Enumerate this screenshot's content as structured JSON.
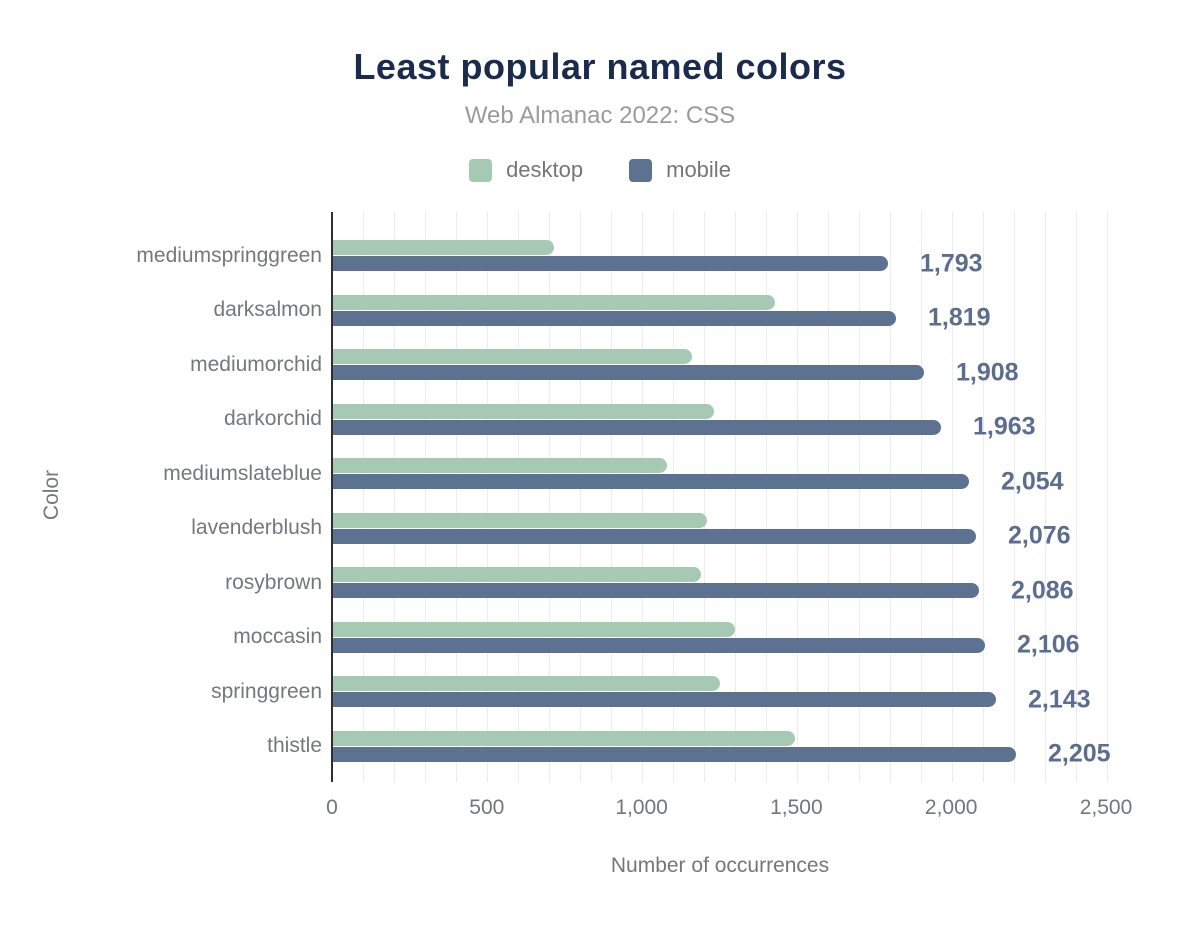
{
  "header": {
    "title": "Least popular named colors",
    "subtitle": "Web Almanac 2022: CSS"
  },
  "legend": [
    {
      "label": "desktop",
      "color": "#a6c9b4"
    },
    {
      "label": "mobile",
      "color": "#5d7191"
    }
  ],
  "chart_data": {
    "type": "bar",
    "orientation": "horizontal",
    "title": "Least popular named colors",
    "subtitle": "Web Almanac 2022: CSS",
    "categories": [
      "mediumspringgreen",
      "darksalmon",
      "mediumorchid",
      "darkorchid",
      "mediumslateblue",
      "lavenderblush",
      "rosybrown",
      "moccasin",
      "springgreen",
      "thistle"
    ],
    "series": [
      {
        "name": "desktop",
        "color": "#a6c9b4",
        "values": [
          715,
          1429,
          1160,
          1230,
          1078,
          1208,
          1188,
          1299,
          1249,
          1491
        ]
      },
      {
        "name": "mobile",
        "color": "#5d7191",
        "values": [
          1793,
          1819,
          1908,
          1963,
          2054,
          2076,
          2086,
          2106,
          2143,
          2205
        ],
        "value_labels": [
          "1,793",
          "1,819",
          "1,908",
          "1,963",
          "2,054",
          "2,076",
          "2,086",
          "2,106",
          "2,143",
          "2,205"
        ]
      }
    ],
    "xlabel": "Number of occurrences",
    "ylabel": "Color",
    "xlim": [
      0,
      2500
    ],
    "xticks": {
      "values": [
        0,
        500,
        1000,
        1500,
        2000,
        2500
      ],
      "labels": [
        "0",
        "500",
        "1,000",
        "1,500",
        "2,000",
        "2,500"
      ]
    },
    "minor_grid_step": 100,
    "grid": "vertical-minor",
    "legend_position": "top"
  },
  "colors": {
    "title": "#1a2b4d",
    "subtitle": "#9b9b9b",
    "axis_text": "#75787b",
    "value_label": "#5b6e90",
    "grid": "#ececec",
    "axis_line": "#2f2f2f",
    "background": "#ffffff"
  }
}
